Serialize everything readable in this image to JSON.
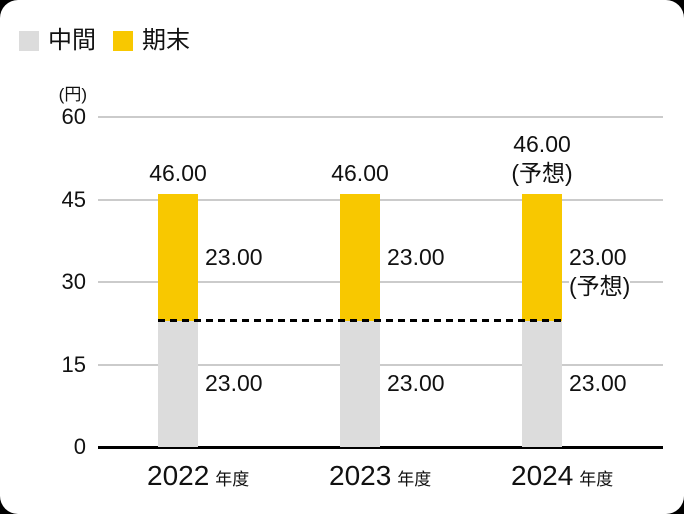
{
  "legend": [
    {
      "label": "中間",
      "color": "#DCDCDC"
    },
    {
      "label": "期末",
      "color": "#F8C800"
    }
  ],
  "chart_data": {
    "type": "bar",
    "stacked": true,
    "title": "",
    "ylabel": "(円)",
    "xlabel": "",
    "ylim": [
      0,
      60
    ],
    "yticks": [
      0,
      15,
      30,
      45,
      60
    ],
    "grid": true,
    "legend_position": "top-left",
    "categories": [
      "2022",
      "2023",
      "2024"
    ],
    "category_suffix": "年度",
    "series": [
      {
        "name": "中間",
        "color": "#DCDCDC",
        "values": [
          23.0,
          23.0,
          23.0
        ]
      },
      {
        "name": "期末",
        "color": "#F8C800",
        "values": [
          23.0,
          23.0,
          23.0
        ]
      }
    ],
    "totals": [
      46.0,
      46.0,
      46.0
    ],
    "reference_line": {
      "value": 23.0,
      "style": "dashed",
      "color": "#000000"
    },
    "bars": [
      {
        "year": "2022",
        "interim_value": 23,
        "year_end_value": 23,
        "interim_label": "23.00",
        "year_end_label": "23.00",
        "year_end_note": "",
        "total_label": "46.00",
        "total_note": ""
      },
      {
        "year": "2023",
        "interim_value": 23,
        "year_end_value": 23,
        "interim_label": "23.00",
        "year_end_label": "23.00",
        "year_end_note": "",
        "total_label": "46.00",
        "total_note": ""
      },
      {
        "year": "2024",
        "interim_value": 23,
        "year_end_value": 23,
        "interim_label": "23.00",
        "year_end_label": "23.00",
        "year_end_note": "(予想)",
        "total_label": "46.00",
        "total_note": "(予想)"
      }
    ]
  }
}
